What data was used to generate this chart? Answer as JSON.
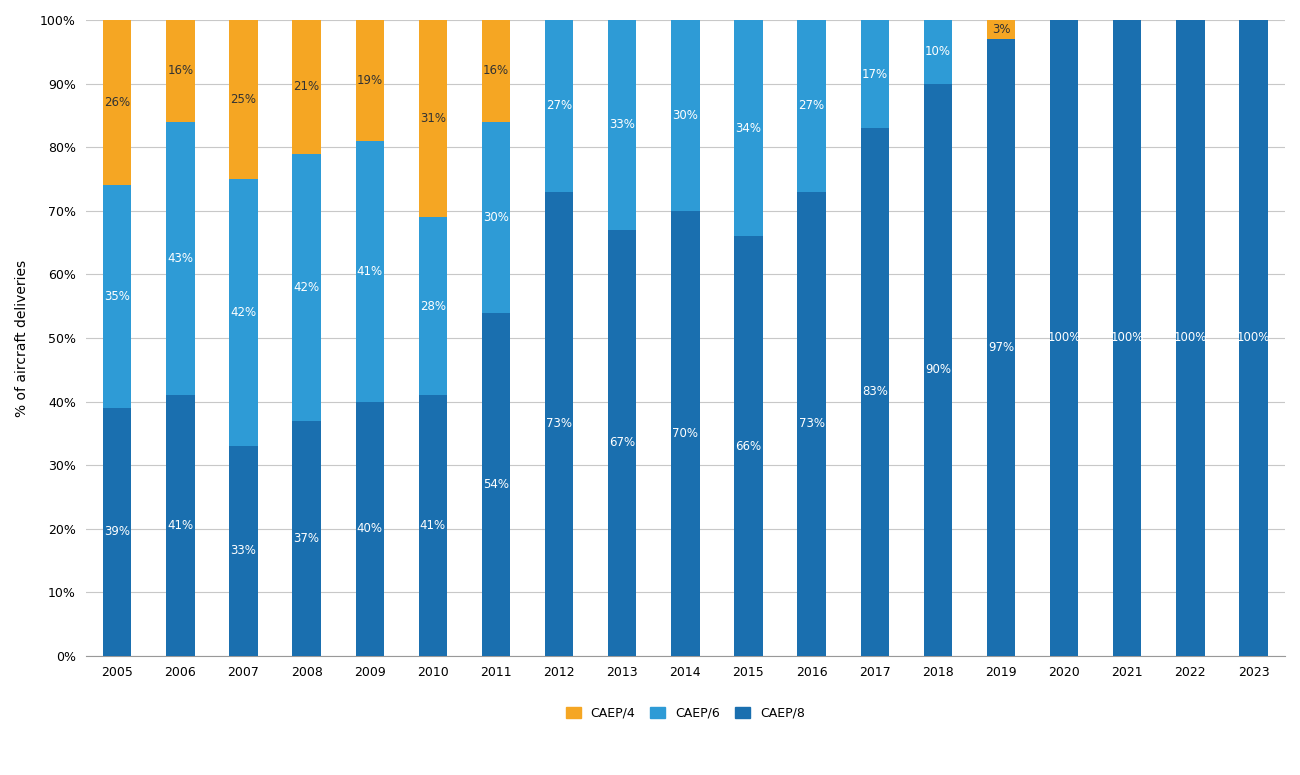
{
  "years": [
    2005,
    2006,
    2007,
    2008,
    2009,
    2010,
    2011,
    2012,
    2013,
    2014,
    2015,
    2016,
    2017,
    2018,
    2019,
    2020,
    2021,
    2022,
    2023
  ],
  "caep4": [
    26,
    16,
    25,
    21,
    19,
    31,
    16,
    0,
    0,
    0,
    0,
    0,
    0,
    0,
    3,
    0,
    0,
    0,
    0
  ],
  "caep6": [
    35,
    43,
    42,
    42,
    41,
    28,
    30,
    27,
    33,
    30,
    34,
    27,
    17,
    10,
    0,
    0,
    0,
    0,
    0
  ],
  "caep8": [
    39,
    41,
    33,
    37,
    40,
    41,
    54,
    73,
    67,
    70,
    66,
    73,
    83,
    90,
    97,
    100,
    100,
    100,
    100
  ],
  "color_caep4": "#F5A623",
  "color_caep6": "#2E9BD6",
  "color_caep8": "#1A6FAF",
  "ylabel": "% of aircraft deliveries",
  "background_color": "#FFFFFF",
  "grid_color": "#C8C8C8",
  "legend_labels": [
    "CAEP/4",
    "CAEP/6",
    "CAEP/8"
  ],
  "bar_width": 0.45,
  "ylim": [
    0,
    100
  ],
  "label_fontsize": 8.5,
  "axis_fontsize": 9,
  "ylabel_fontsize": 10
}
